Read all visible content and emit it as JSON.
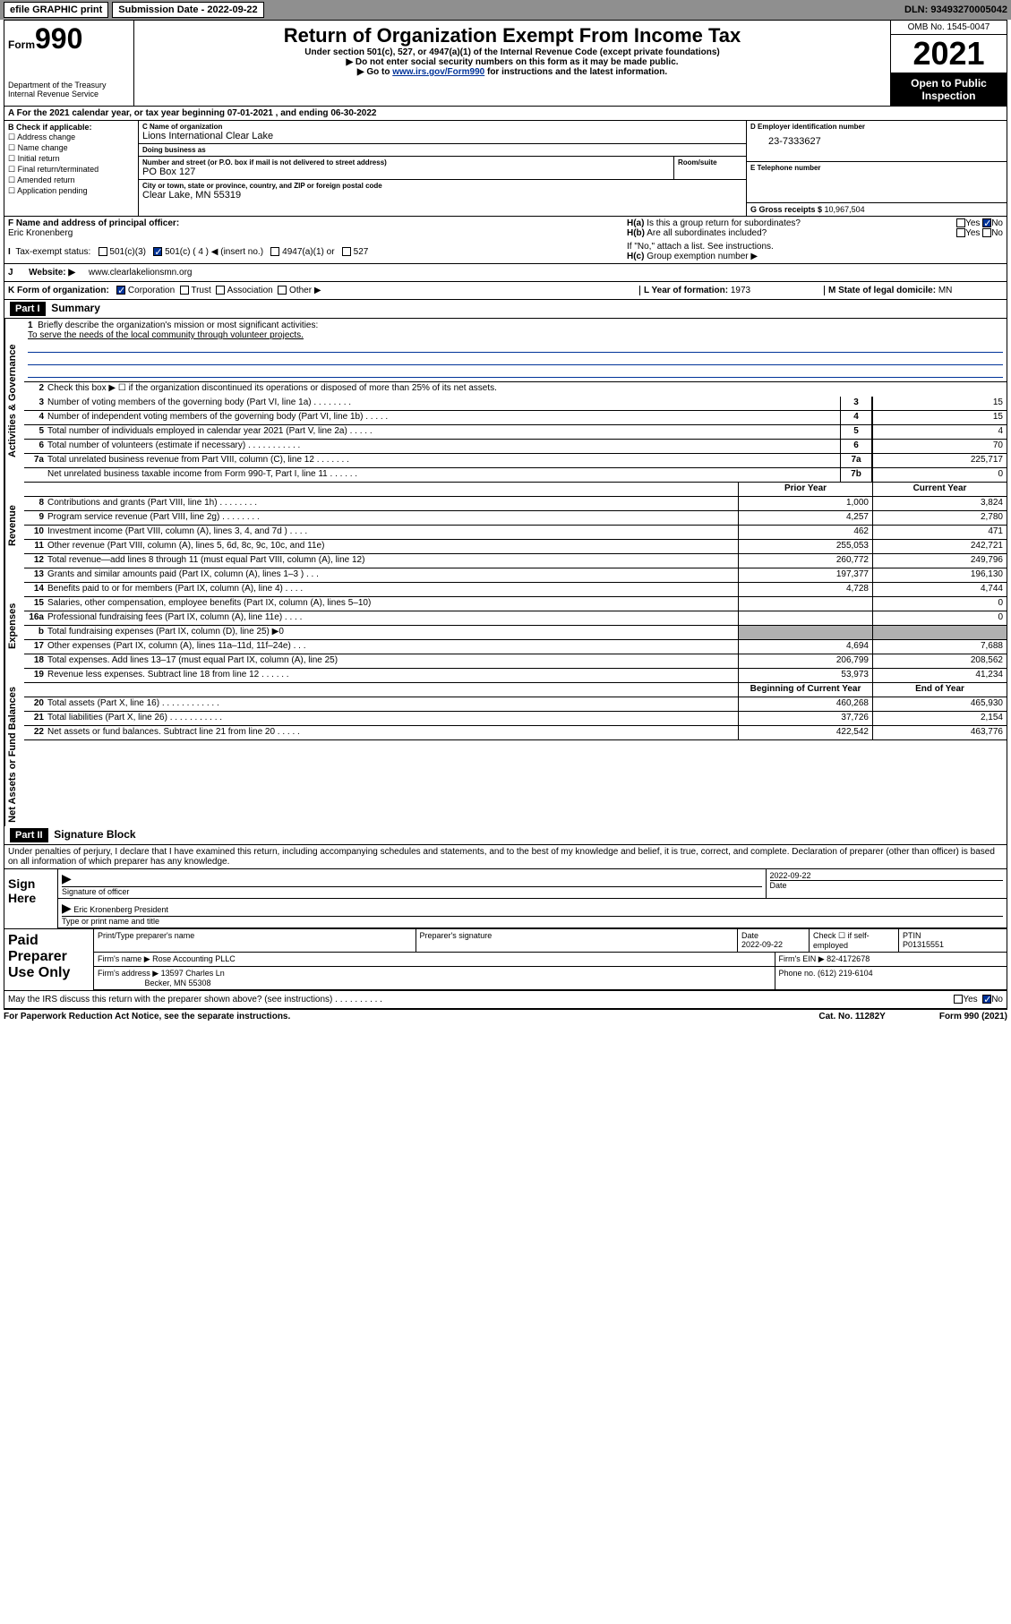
{
  "topbar": {
    "efile": "efile GRAPHIC print",
    "subdate_lbl": "Submission Date - ",
    "subdate": "2022-09-22",
    "dln_lbl": "DLN: ",
    "dln": "93493270005042"
  },
  "header": {
    "form_small": "Form",
    "form_big": "990",
    "title": "Return of Organization Exempt From Income Tax",
    "sub": "Under section 501(c), 527, or 4947(a)(1) of the Internal Revenue Code (except private foundations)",
    "note1": "▶ Do not enter social security numbers on this form as it may be made public.",
    "note2_pre": "▶ Go to ",
    "note2_link": "www.irs.gov/Form990",
    "note2_post": " for instructions and the latest information.",
    "dept": "Department of the Treasury",
    "irs": "Internal Revenue Service",
    "omb": "OMB No. 1545-0047",
    "year": "2021",
    "open": "Open to Public Inspection"
  },
  "rowA": {
    "text": "A For the 2021 calendar year, or tax year beginning 07-01-2021   , and ending 06-30-2022"
  },
  "colB": {
    "hdr": "B Check if applicable:",
    "items": [
      "Address change",
      "Name change",
      "Initial return",
      "Final return/terminated",
      "Amended return",
      "Application pending"
    ]
  },
  "colC": {
    "name_lbl": "C Name of organization",
    "name": "Lions International Clear Lake",
    "dba_lbl": "Doing business as",
    "dba": "",
    "street_lbl": "Number and street (or P.O. box if mail is not delivered to street address)",
    "street": "PO Box 127",
    "suite_lbl": "Room/suite",
    "city_lbl": "City or town, state or province, country, and ZIP or foreign postal code",
    "city": "Clear Lake, MN  55319"
  },
  "colD": {
    "lbl": "D Employer identification number",
    "val": "23-7333627",
    "e_lbl": "E Telephone number",
    "e_val": "",
    "g_lbl": "G Gross receipts $ ",
    "g_val": "10,967,504"
  },
  "secF": {
    "lbl": "F Name and address of principal officer:",
    "val": "Eric Kronenberg"
  },
  "secH": {
    "a": "Is this a group return for subordinates?",
    "b": "Are all subordinates included?",
    "bnote": "If \"No,\" attach a list. See instructions.",
    "c": "Group exemption number ▶",
    "yes": "Yes",
    "no": "No"
  },
  "secI": {
    "lbl": "Tax-exempt status:",
    "o1": "501(c)(3)",
    "o2": "501(c) ( 4 ) ◀ (insert no.)",
    "o3": "4947(a)(1) or",
    "o4": "527"
  },
  "secJ": {
    "lbl": "Website: ▶",
    "val": "www.clearlakelionsmn.org"
  },
  "secK": {
    "lbl": "K Form of organization:",
    "o1": "Corporation",
    "o2": "Trust",
    "o3": "Association",
    "o4": "Other ▶"
  },
  "secL": {
    "lbl": "L Year of formation: ",
    "val": "1973"
  },
  "secM": {
    "lbl": "M State of legal domicile: ",
    "val": "MN"
  },
  "part1": {
    "hdr": "Part I",
    "title": "Summary",
    "q1": "Briefly describe the organization's mission or most significant activities:",
    "q1a": "To serve the needs of the local community through volunteer projects.",
    "q2": "Check this box ▶ ☐ if the organization discontinued its operations or disposed of more than 25% of its net assets.",
    "rows_gov": [
      {
        "n": "3",
        "d": "Number of voting members of the governing body (Part VI, line 1a)  .  .  .  .  .  .  .  .",
        "k": "3",
        "v": "15"
      },
      {
        "n": "4",
        "d": "Number of independent voting members of the governing body (Part VI, line 1b)  .  .  .  .  .",
        "k": "4",
        "v": "15"
      },
      {
        "n": "5",
        "d": "Total number of individuals employed in calendar year 2021 (Part V, line 2a)  .  .  .  .  .",
        "k": "5",
        "v": "4"
      },
      {
        "n": "6",
        "d": "Total number of volunteers (estimate if necessary)  .  .  .  .  .  .  .  .  .  .  .",
        "k": "6",
        "v": "70"
      },
      {
        "n": "7a",
        "d": "Total unrelated business revenue from Part VIII, column (C), line 12  .  .  .  .  .  .  .",
        "k": "7a",
        "v": "225,717"
      },
      {
        "n": "",
        "d": "Net unrelated business taxable income from Form 990-T, Part I, line 11  .  .  .  .  .  .",
        "k": "7b",
        "v": "0"
      }
    ],
    "hdr_prior": "Prior Year",
    "hdr_curr": "Current Year",
    "rows_rev": [
      {
        "n": "8",
        "d": "Contributions and grants (Part VIII, line 1h)  .  .  .  .  .  .  .  .",
        "p": "1,000",
        "c": "3,824"
      },
      {
        "n": "9",
        "d": "Program service revenue (Part VIII, line 2g)  .  .  .  .  .  .  .  .",
        "p": "4,257",
        "c": "2,780"
      },
      {
        "n": "10",
        "d": "Investment income (Part VIII, column (A), lines 3, 4, and 7d )  .  .  .  .",
        "p": "462",
        "c": "471"
      },
      {
        "n": "11",
        "d": "Other revenue (Part VIII, column (A), lines 5, 6d, 8c, 9c, 10c, and 11e)",
        "p": "255,053",
        "c": "242,721"
      },
      {
        "n": "12",
        "d": "Total revenue—add lines 8 through 11 (must equal Part VIII, column (A), line 12)",
        "p": "260,772",
        "c": "249,796"
      }
    ],
    "rows_exp": [
      {
        "n": "13",
        "d": "Grants and similar amounts paid (Part IX, column (A), lines 1–3 )  .  .  .",
        "p": "197,377",
        "c": "196,130"
      },
      {
        "n": "14",
        "d": "Benefits paid to or for members (Part IX, column (A), line 4)  .  .  .  .",
        "p": "4,728",
        "c": "4,744"
      },
      {
        "n": "15",
        "d": "Salaries, other compensation, employee benefits (Part IX, column (A), lines 5–10)",
        "p": "",
        "c": "0"
      },
      {
        "n": "16a",
        "d": "Professional fundraising fees (Part IX, column (A), line 11e)  .  .  .  .",
        "p": "",
        "c": "0"
      },
      {
        "n": "b",
        "d": "Total fundraising expenses (Part IX, column (D), line 25) ▶0",
        "p": "",
        "c": "",
        "shade": true
      },
      {
        "n": "17",
        "d": "Other expenses (Part IX, column (A), lines 11a–11d, 11f–24e)  .  .  .",
        "p": "4,694",
        "c": "7,688"
      },
      {
        "n": "18",
        "d": "Total expenses. Add lines 13–17 (must equal Part IX, column (A), line 25)",
        "p": "206,799",
        "c": "208,562"
      },
      {
        "n": "19",
        "d": "Revenue less expenses. Subtract line 18 from line 12  .  .  .  .  .  .",
        "p": "53,973",
        "c": "41,234"
      }
    ],
    "hdr_begin": "Beginning of Current Year",
    "hdr_end": "End of Year",
    "rows_net": [
      {
        "n": "20",
        "d": "Total assets (Part X, line 16)  .  .  .  .  .  .  .  .  .  .  .  .",
        "p": "460,268",
        "c": "465,930"
      },
      {
        "n": "21",
        "d": "Total liabilities (Part X, line 26)  .  .  .  .  .  .  .  .  .  .  .",
        "p": "37,726",
        "c": "2,154"
      },
      {
        "n": "22",
        "d": "Net assets or fund balances. Subtract line 21 from line 20  .  .  .  .  .",
        "p": "422,542",
        "c": "463,776"
      }
    ],
    "tabs": {
      "gov": "Activities & Governance",
      "rev": "Revenue",
      "exp": "Expenses",
      "net": "Net Assets or Fund Balances"
    }
  },
  "part2": {
    "hdr": "Part II",
    "title": "Signature Block",
    "decl": "Under penalties of perjury, I declare that I have examined this return, including accompanying schedules and statements, and to the best of my knowledge and belief, it is true, correct, and complete. Declaration of preparer (other than officer) is based on all information of which preparer has any knowledge.",
    "sign_here": "Sign Here",
    "sig_officer_lbl": "Signature of officer",
    "date_lbl": "Date",
    "date_val": "2022-09-22",
    "name_title": "Eric Kronenberg  President",
    "name_title_lbl": "Type or print name and title",
    "paid": "Paid Preparer Use Only",
    "p_name_lbl": "Print/Type preparer's name",
    "p_sig_lbl": "Preparer's signature",
    "p_date_lbl": "Date",
    "p_date": "2022-09-22",
    "p_check_lbl": "Check ☐ if self-employed",
    "ptin_lbl": "PTIN",
    "ptin": "P01315551",
    "firm_name_lbl": "Firm's name  ▶",
    "firm_name": "Rose Accounting PLLC",
    "firm_ein_lbl": "Firm's EIN ▶",
    "firm_ein": "82-4172678",
    "firm_addr_lbl": "Firm's address ▶",
    "firm_addr": "13597 Charles Ln",
    "firm_addr2": "Becker, MN  55308",
    "phone_lbl": "Phone no. ",
    "phone": "(612) 219-6104",
    "may_irs": "May the IRS discuss this return with the preparer shown above? (see instructions)  .  .  .  .  .  .  .  .  .  .",
    "yes": "Yes",
    "no": "No"
  },
  "footer": {
    "pra": "For Paperwork Reduction Act Notice, see the separate instructions.",
    "cat": "Cat. No. 11282Y",
    "form": "Form 990 (2021)"
  }
}
